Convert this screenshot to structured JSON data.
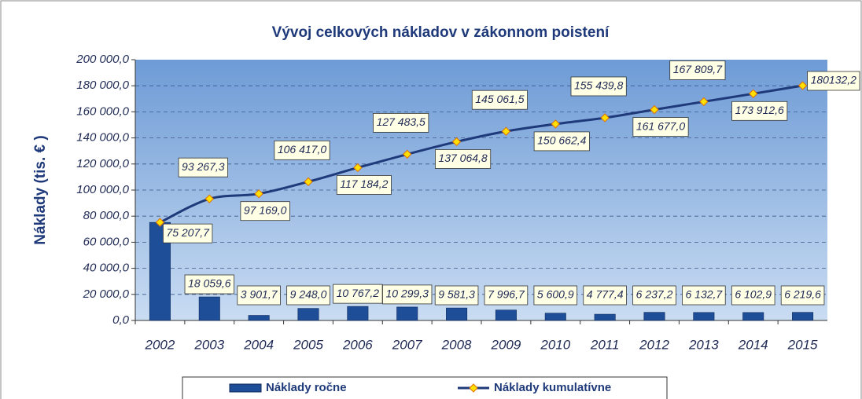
{
  "chart_data": {
    "type": "bar_line",
    "title": "Vývoj celkových nákladov  v zákonnom poistení",
    "y_axis_label": "Náklady  (tis. € )",
    "categories": [
      "2002",
      "2003",
      "2004",
      "2005",
      "2006",
      "2007",
      "2008",
      "2009",
      "2010",
      "2011",
      "2012",
      "2013",
      "2014",
      "2015"
    ],
    "ylim": [
      0,
      200000
    ],
    "yticks": [
      {
        "value": 0,
        "label": "0,0"
      },
      {
        "value": 20000,
        "label": "20 000,0"
      },
      {
        "value": 40000,
        "label": "40 000,0"
      },
      {
        "value": 60000,
        "label": "60 000,0"
      },
      {
        "value": 80000,
        "label": "80 000,0"
      },
      {
        "value": 100000,
        "label": "100 000,0"
      },
      {
        "value": 120000,
        "label": "120 000,0"
      },
      {
        "value": 140000,
        "label": "140 000,0"
      },
      {
        "value": 160000,
        "label": "160 000,0"
      },
      {
        "value": 180000,
        "label": "180 000,0"
      },
      {
        "value": 200000,
        "label": "200 000,0"
      }
    ],
    "grid": true,
    "legend": "bottom",
    "series": [
      {
        "name": "Náklady ročne",
        "type": "bar",
        "color": "#1f4e99",
        "values": [
          75207.7,
          18059.6,
          3901.7,
          9248.0,
          10767.2,
          10299.3,
          9581.3,
          7996.7,
          5600.9,
          4777.4,
          6237.2,
          6132.7,
          6102.9,
          6219.6
        ],
        "value_labels": [
          null,
          "18 059,6",
          "3 901,7",
          "9 248,0",
          "10 767,2",
          "10 299,3",
          "9 581,3",
          "7 996,7",
          "5 600,9",
          "4 777,4",
          "6 237,2",
          "6 132,7",
          "6 102,9",
          "6 219,6"
        ]
      },
      {
        "name": "Náklady kumulatívne",
        "type": "line",
        "color": "#1f3a7a",
        "marker_color": "#ffe000",
        "values": [
          75207.7,
          93267.3,
          97169.0,
          106417.0,
          117184.2,
          127483.5,
          137064.8,
          145061.5,
          150662.4,
          155439.8,
          161677.0,
          167809.7,
          173912.6,
          180132.2
        ],
        "value_labels": [
          "75 207,7",
          "93 267,3",
          "97 169,0",
          "106 417,0",
          "117 184,2",
          "127 483,5",
          "137 064,8",
          "145 061,5",
          "150 662,4",
          "155 439,8",
          "161 677,0",
          "167 809,7",
          "173 912,6",
          "180132,2"
        ]
      }
    ]
  }
}
